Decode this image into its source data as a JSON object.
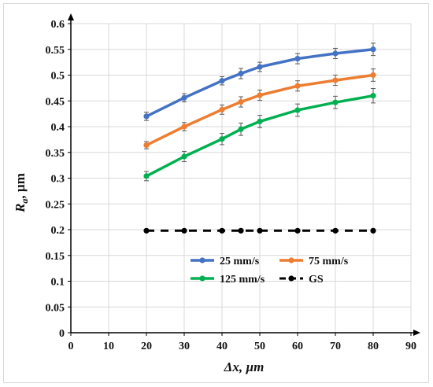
{
  "chart_data": {
    "type": "line",
    "xlabel": "Δx, µm",
    "ylabel_main": "R",
    "ylabel_sub": "a",
    "ylabel_rest": ", µm",
    "xlim": [
      0,
      90
    ],
    "ylim": [
      0,
      0.6
    ],
    "x_ticks": [
      "0",
      "10",
      "20",
      "30",
      "40",
      "50",
      "60",
      "70",
      "80",
      "90"
    ],
    "y_ticks": [
      "0",
      "0.05",
      "0.1",
      "0.15",
      "0.2",
      "0.25",
      "0.3",
      "0.35",
      "0.4",
      "0.45",
      "0.5",
      "0.55",
      "0.6"
    ],
    "grid": true,
    "legend_position": "lower-center",
    "series": [
      {
        "name": "25 mm/s",
        "color": "#4472c4",
        "style": "solid",
        "x": [
          20,
          30,
          40,
          45,
          50,
          60,
          70,
          80
        ],
        "y": [
          0.42,
          0.456,
          0.489,
          0.503,
          0.516,
          0.532,
          0.542,
          0.55
        ],
        "err": [
          0.008,
          0.008,
          0.008,
          0.01,
          0.009,
          0.01,
          0.01,
          0.012
        ]
      },
      {
        "name": "75 mm/s",
        "color": "#ed7d31",
        "style": "solid",
        "x": [
          20,
          30,
          40,
          45,
          50,
          60,
          70,
          80
        ],
        "y": [
          0.364,
          0.4,
          0.433,
          0.448,
          0.461,
          0.479,
          0.49,
          0.5
        ],
        "err": [
          0.007,
          0.008,
          0.009,
          0.01,
          0.01,
          0.01,
          0.01,
          0.012
        ]
      },
      {
        "name": "125 mm/s",
        "color": "#00b050",
        "style": "solid",
        "x": [
          20,
          30,
          40,
          45,
          50,
          60,
          70,
          80
        ],
        "y": [
          0.304,
          0.342,
          0.376,
          0.395,
          0.41,
          0.432,
          0.447,
          0.46
        ],
        "err": [
          0.009,
          0.01,
          0.011,
          0.012,
          0.012,
          0.012,
          0.012,
          0.014
        ]
      },
      {
        "name": "GS",
        "color": "#000000",
        "style": "dashed",
        "x": [
          20,
          30,
          40,
          45,
          50,
          60,
          70,
          80
        ],
        "y": [
          0.198,
          0.198,
          0.198,
          0.198,
          0.198,
          0.198,
          0.198,
          0.198
        ],
        "err": [
          0,
          0,
          0,
          0,
          0,
          0,
          0,
          0
        ]
      }
    ]
  }
}
